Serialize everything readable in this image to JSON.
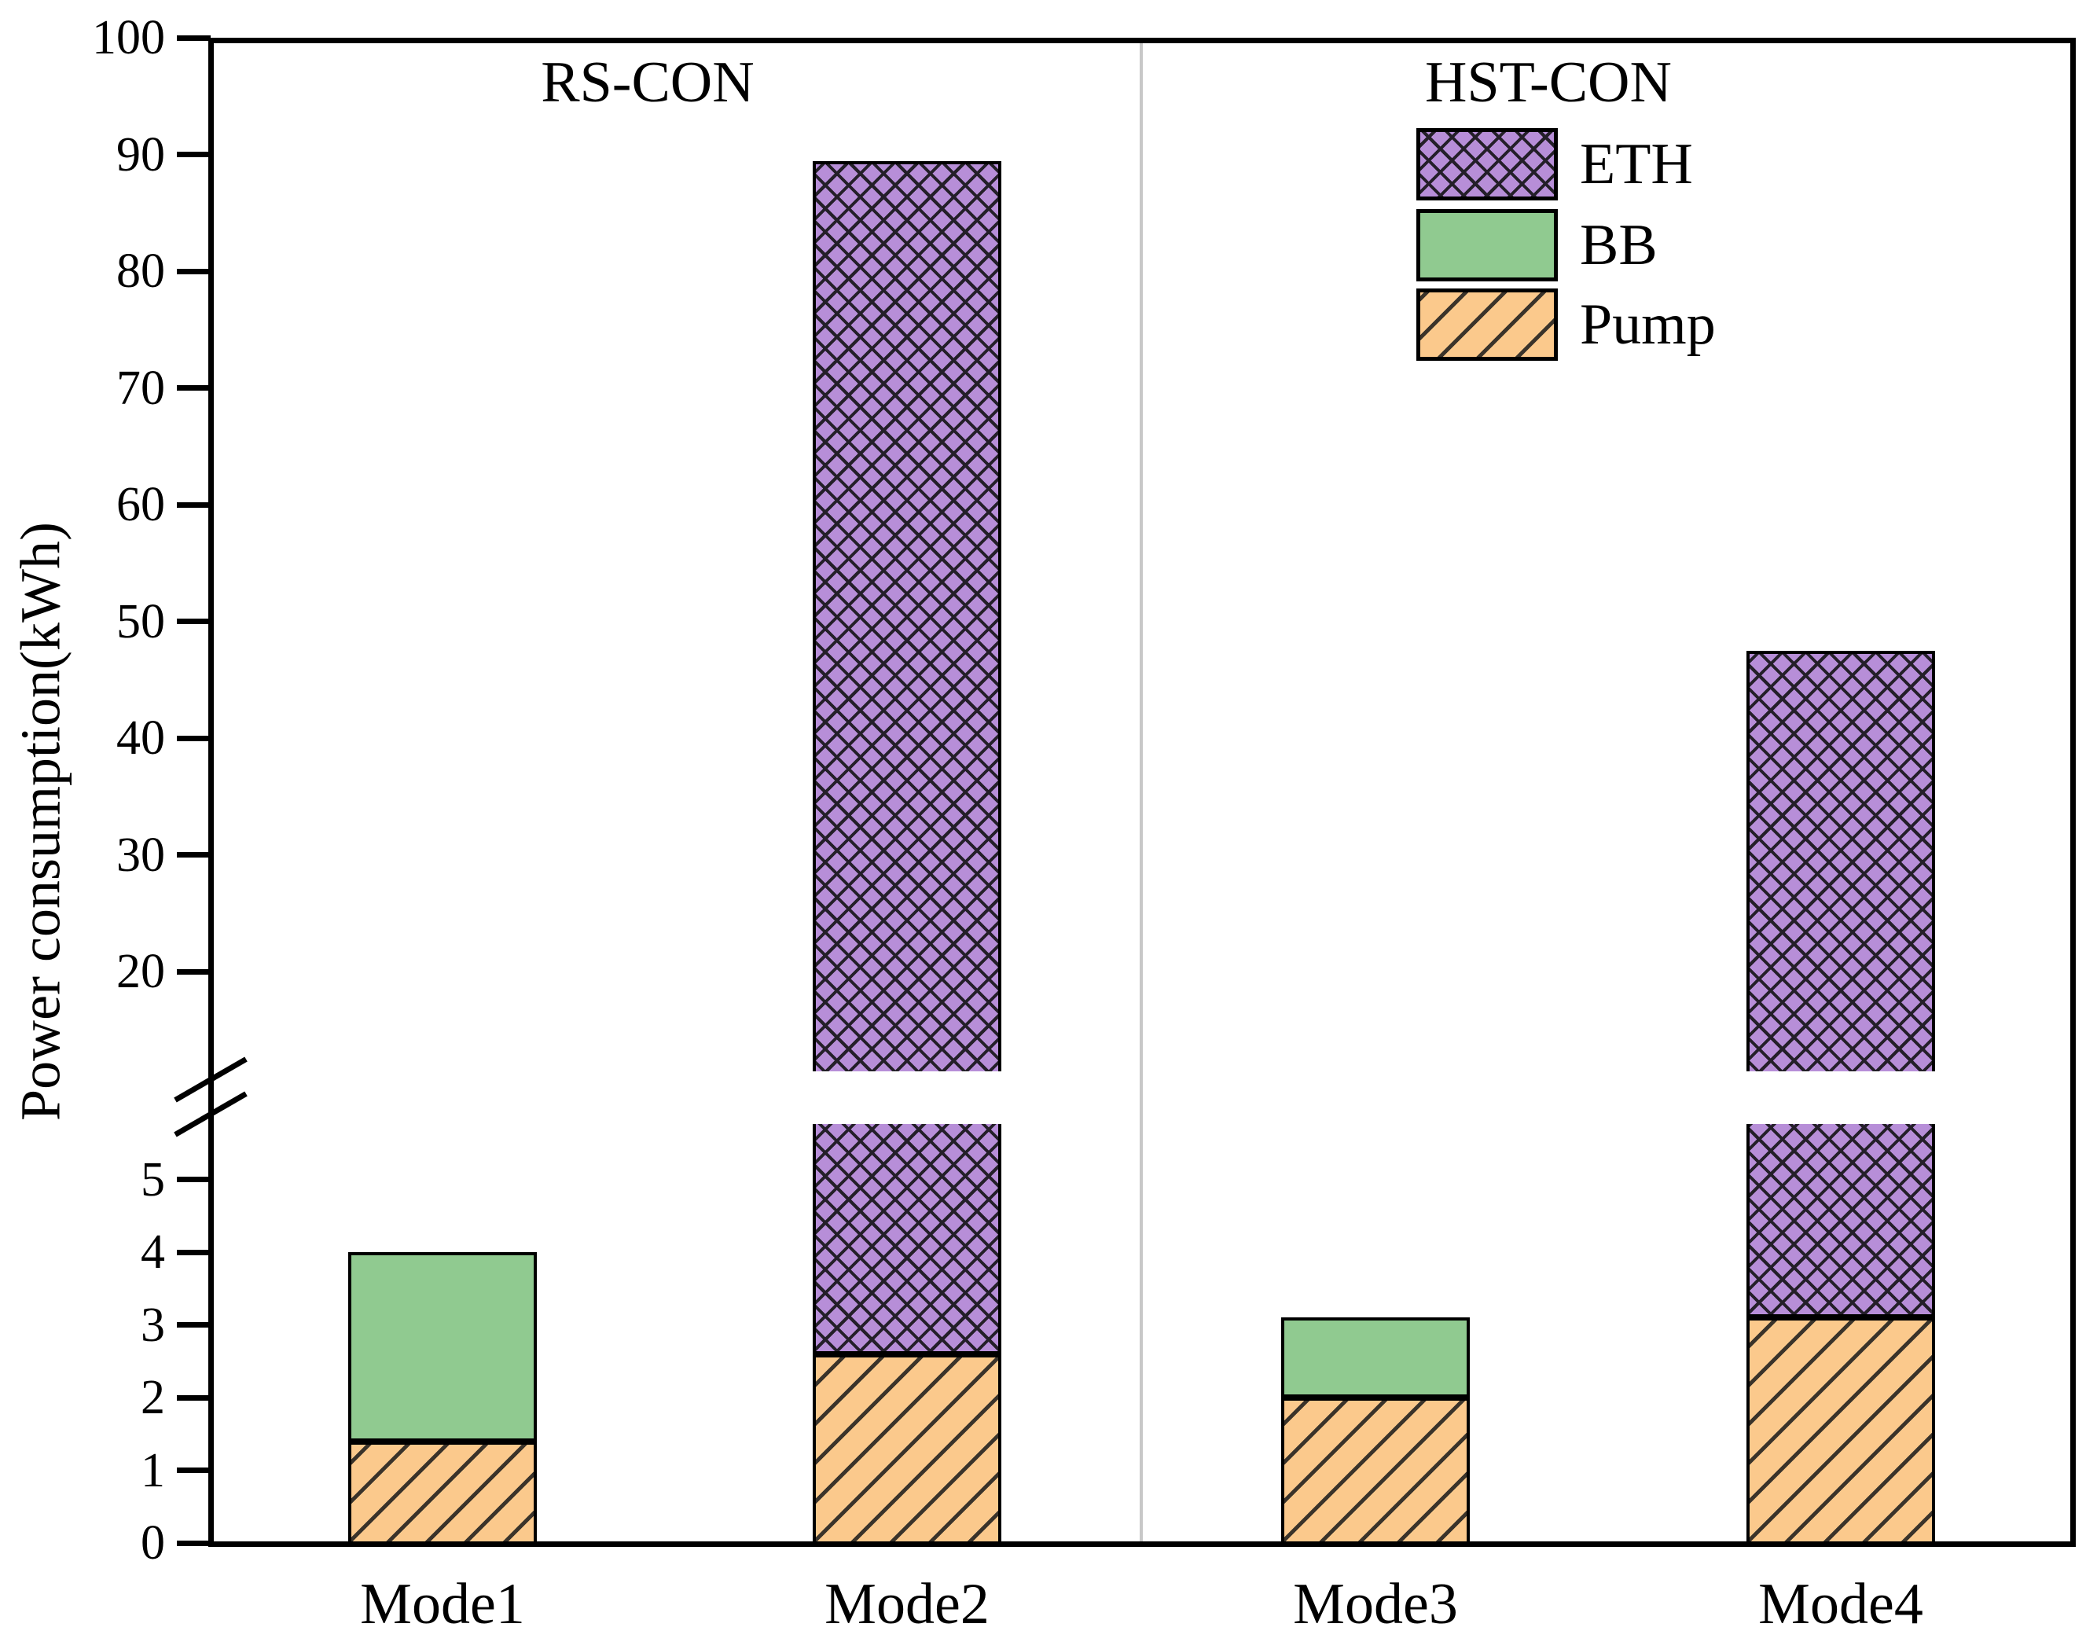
{
  "regions": {
    "left": "RS-CON",
    "right": "HST-CON"
  },
  "y_axis": {
    "label": "Power consumption(kWh)",
    "upper_tick_labels": [
      "100",
      "90",
      "80",
      "70",
      "60",
      "50",
      "40",
      "30",
      "20"
    ],
    "lower_tick_labels": [
      "5",
      "4",
      "3",
      "2",
      "1",
      "0"
    ]
  },
  "legend": {
    "items": [
      {
        "label": "ETH",
        "series": "ETH",
        "hatch": "crosshatch",
        "color": "#b78ed8"
      },
      {
        "label": "BB",
        "series": "BB",
        "hatch": "none",
        "color": "#90ca90"
      },
      {
        "label": "Pump",
        "series": "Pump",
        "hatch": "diagonal",
        "color": "#fbc98c"
      }
    ]
  },
  "colors": {
    "background": "#ffffff",
    "frame": "#000000",
    "divider": "#c8c8c8",
    "eth_purple": "#b78ed8",
    "bb_green": "#90ca90",
    "pump_orange": "#fbc98c"
  },
  "chart_data": {
    "type": "bar",
    "stacked": true,
    "categories": [
      "Mode1",
      "Mode2",
      "Mode3",
      "Mode4"
    ],
    "series": [
      {
        "name": "Pump",
        "values": [
          1.4,
          2.6,
          2.0,
          3.1
        ],
        "color": "#fbc98c",
        "hatch": "diagonal"
      },
      {
        "name": "BB",
        "values": [
          2.6,
          0,
          1.1,
          0
        ],
        "color": "#90ca90",
        "hatch": "none"
      },
      {
        "name": "ETH",
        "values": [
          0,
          86.8,
          0,
          44.4
        ],
        "color": "#b78ed8",
        "hatch": "crosshatch"
      }
    ],
    "stack_totals": [
      4.0,
      89.4,
      3.1,
      47.5
    ],
    "title": "",
    "xlabel": "",
    "ylabel": "Power consumption(kWh)",
    "ylim": [
      0,
      100
    ],
    "y_axis_break": [
      5.8,
      11.5
    ],
    "upper_ticks": [
      100,
      90,
      80,
      70,
      60,
      50,
      40,
      30,
      20
    ],
    "lower_ticks": [
      5,
      4,
      3,
      2,
      1,
      0
    ],
    "group_labels": {
      "RS-CON": [
        "Mode1",
        "Mode2"
      ],
      "HST-CON": [
        "Mode3",
        "Mode4"
      ]
    },
    "legend_position": "upper right",
    "grid": false
  }
}
